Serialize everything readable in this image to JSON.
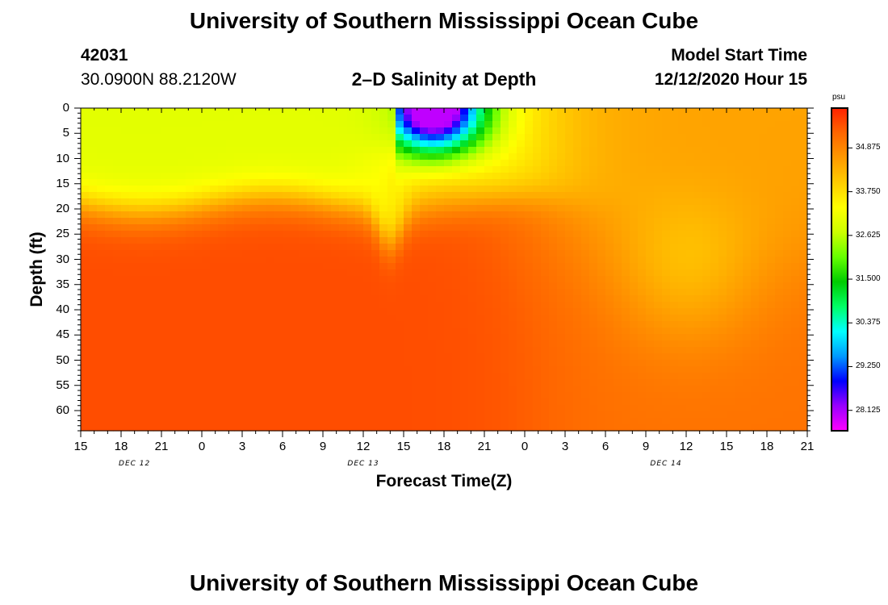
{
  "page": {
    "title_top": "University of Southern Mississippi Ocean Cube",
    "title_bottom": "University of Southern Mississippi Ocean Cube",
    "station_id": "42031",
    "location": "30.0900N 88.2120W",
    "plot_title": "2–D Salinity at Depth",
    "model_label": "Model Start Time",
    "model_time": "12/12/2020 Hour 15"
  },
  "colors": {
    "scale": [
      "#ff00ff",
      "#9900ff",
      "#0000ff",
      "#0099ff",
      "#00ffff",
      "#00ff66",
      "#00cc00",
      "#66ff00",
      "#ccff00",
      "#ffff00",
      "#ffcc00",
      "#ff9900",
      "#ff6600",
      "#ff2200"
    ]
  },
  "chart_data": {
    "type": "heatmap",
    "title": "2–D Salinity at Depth",
    "xlabel": "Forecast Time(Z)",
    "ylabel": "Depth (ft)",
    "x_ticks": [
      "15",
      "18",
      "21",
      "0",
      "3",
      "6",
      "9",
      "12",
      "15",
      "18",
      "21",
      "0",
      "3",
      "6",
      "9",
      "12",
      "15",
      "18",
      "21"
    ],
    "x_range_hours": [
      0,
      54
    ],
    "date_labels": [
      {
        "hour": 4,
        "label": "DEC 12"
      },
      {
        "hour": 21,
        "label": "DEC 13"
      },
      {
        "hour": 43.5,
        "label": "DEC 14"
      }
    ],
    "y_ticks": [
      0,
      5,
      10,
      15,
      20,
      25,
      30,
      35,
      40,
      45,
      50,
      55,
      60
    ],
    "ylim": [
      0,
      64
    ],
    "y_inverted": true,
    "colorbar": {
      "unit": "psu",
      "min": 27.6,
      "max": 35.9,
      "ticks": [
        28.125,
        29.25,
        30.375,
        31.5,
        32.625,
        33.75,
        34.875
      ],
      "tick_labels": [
        "28.125",
        "29.250",
        "30.375",
        "31.500",
        "32.625",
        "33.750",
        "34.875"
      ]
    },
    "description_values": {
      "surface_fresh_plume": {
        "hours": [
          24,
          33
        ],
        "depth_ft": [
          0,
          10
        ],
        "min_salinity": 28.0
      },
      "upper_layer_early": {
        "hours": [
          0,
          23
        ],
        "depth_ft": [
          0,
          18
        ],
        "salinity": 33.0
      },
      "deep_layer_early": {
        "hours": [
          0,
          36
        ],
        "depth_ft": [
          28,
          64
        ],
        "salinity": 35.5
      },
      "late_column": {
        "hours": [
          36,
          54
        ],
        "depth_ft": [
          0,
          64
        ],
        "salinity": 34.5
      }
    }
  }
}
